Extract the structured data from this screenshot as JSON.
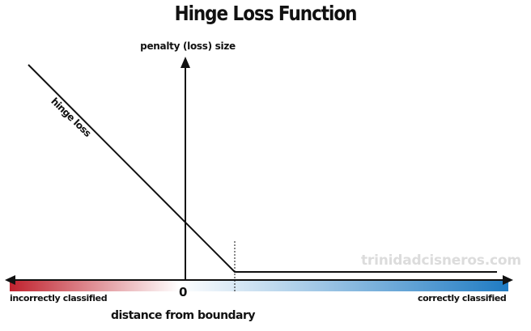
{
  "title": "Hinge Loss Function",
  "y_axis_label": "penalty (loss) size",
  "x_axis_label": "distance from boundary",
  "origin_label": "0",
  "curve_label": "hinge loss",
  "left_end_label": "incorrectly classified",
  "right_end_label": "correctly classified",
  "watermark": "trinidadcisneros.com",
  "colors": {
    "incorrect": "#c0222e",
    "neutral": "#ffffff",
    "correct": "#1f7bc3",
    "line": "#111111",
    "watermark": "#dcdcdc"
  }
}
